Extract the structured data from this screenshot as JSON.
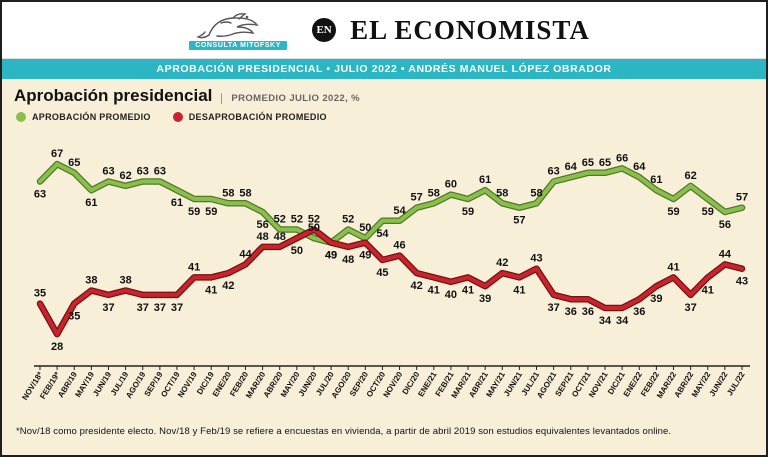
{
  "header": {
    "logo_text": "CONSULTA MITOFSKY",
    "en_badge": "EN",
    "masthead": "EL ECONOMISTA",
    "banner": "APROBACIÓN PRESIDENCIAL • JULIO 2022 • ANDRÉS MANUEL LÓPEZ OBRADOR"
  },
  "chart_header": {
    "title": "Aprobación presidencial",
    "subtitle": "PROMEDIO JULIO 2022, %"
  },
  "legend": [
    {
      "label": "APROBACIÓN PROMEDIO",
      "color": "#8cbe4f"
    },
    {
      "label": "DESAPROBACIÓN PROMEDIO",
      "color": "#c8242b"
    }
  ],
  "footnote": "*Nov/18 como presidente electo. Nov/18 y Feb/19 se refiere a encuestas en vivienda, a partir de abril 2019 son estudios equivalentes levantados online.",
  "colors": {
    "teal": "#2cb6c3",
    "cream": "#f7efd8",
    "green": "#8cbe4f",
    "red": "#c8242b"
  },
  "chart_data": {
    "type": "line",
    "title": "Aprobación presidencial — Promedio Julio 2022, %",
    "categories": [
      "NOV/18*",
      "FEB/19*",
      "ABR/19",
      "MAY/19",
      "JUN/19",
      "JUL/19",
      "AGO/19",
      "SEP/19",
      "OCT/19",
      "NOV/19",
      "DIC/19",
      "ENE/20",
      "FEB/20",
      "MAR/20",
      "ABR/20",
      "MAY/20",
      "JUN/20",
      "JUL/20",
      "AGO/20",
      "SEP/20",
      "OCT/20",
      "NOV/20",
      "DIC/20",
      "ENE/21",
      "FEB/21",
      "MAR/21",
      "ABR/21",
      "MAY/21",
      "JUN/21",
      "JUL/21",
      "AGO/21",
      "SEP/21",
      "OCT/21",
      "NOV/21",
      "DIC/21",
      "ENE/22",
      "FEB/22",
      "MAR/22",
      "ABR/22",
      "MAY/22",
      "JUN/22",
      "JUL/22"
    ],
    "series": [
      {
        "name": "Aprobación promedio",
        "color": "#8cbe4f",
        "edge": "#4f7a23",
        "values": [
          63,
          67,
          65,
          61,
          63,
          62,
          63,
          63,
          61,
          59,
          59,
          58,
          58,
          56,
          52,
          52,
          50,
          49,
          52,
          50,
          54,
          54,
          57,
          58,
          60,
          59,
          61,
          58,
          57,
          58,
          63,
          64,
          65,
          65,
          66,
          64,
          61,
          59,
          62,
          59,
          56,
          57
        ]
      },
      {
        "name": "Desaprobación promedio",
        "color": "#c8242b",
        "edge": "#751015",
        "values": [
          35,
          28,
          35,
          38,
          37,
          38,
          37,
          37,
          37,
          41,
          41,
          42,
          44,
          48,
          48,
          50,
          52,
          49,
          48,
          49,
          45,
          46,
          42,
          41,
          40,
          41,
          39,
          42,
          41,
          43,
          37,
          36,
          36,
          34,
          34,
          36,
          39,
          41,
          37,
          41,
          44,
          43
        ]
      }
    ],
    "ylim": [
      25,
      70
    ],
    "grid": false,
    "legend_position": "top-left",
    "label_sides": [
      [
        "B",
        "A",
        "A",
        "B",
        "A",
        "A",
        "A",
        "A",
        "B",
        "B",
        "B",
        "A",
        "A",
        "B",
        "A",
        "A",
        "A",
        "B",
        "A",
        "A",
        "B",
        "A",
        "A",
        "A",
        "A",
        "B",
        "A",
        "A",
        "B",
        "A",
        "A",
        "A",
        "A",
        "A",
        "A",
        "A",
        "A",
        "B",
        "A",
        "B",
        "B",
        "A"
      ],
      [
        "A",
        "B",
        "B",
        "A",
        "B",
        "A",
        "B",
        "B",
        "B",
        "A",
        "B",
        "B",
        "A",
        "A",
        "A",
        "B",
        "A",
        "B",
        "B",
        "B",
        "B",
        "A",
        "B",
        "B",
        "B",
        "B",
        "B",
        "A",
        "B",
        "A",
        "B",
        "B",
        "B",
        "B",
        "B",
        "B",
        "B",
        "A",
        "B",
        "B",
        "A",
        "B"
      ]
    ]
  }
}
